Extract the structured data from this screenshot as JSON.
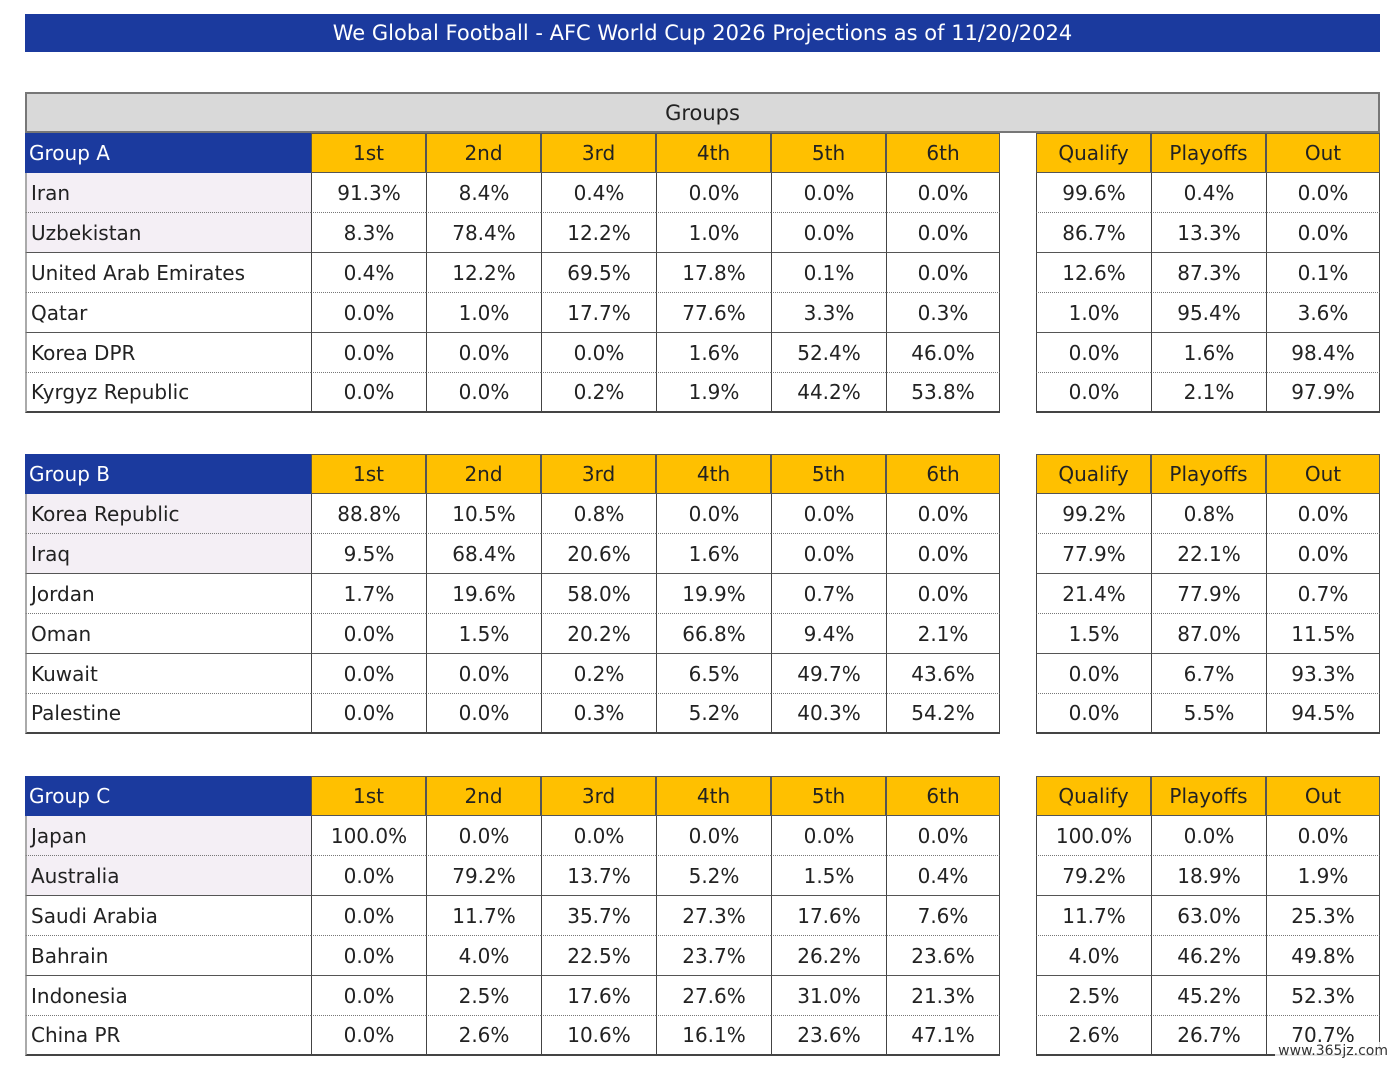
{
  "header": {
    "title": "We Global Football - AFC World Cup 2026 Projections as of 11/20/2024"
  },
  "groups_label": "Groups",
  "columns": [
    "1st",
    "2nd",
    "3rd",
    "4th",
    "5th",
    "6th"
  ],
  "outcome_columns": [
    "Qualify",
    "Playoffs",
    "Out"
  ],
  "groups": [
    {
      "name": "Group A",
      "rows": [
        {
          "team": "Iran",
          "positions": [
            "91.3%",
            "8.4%",
            "0.4%",
            "0.0%",
            "0.0%",
            "0.0%"
          ],
          "outcomes": [
            "99.6%",
            "0.4%",
            "0.0%"
          ]
        },
        {
          "team": "Uzbekistan",
          "positions": [
            "8.3%",
            "78.4%",
            "12.2%",
            "1.0%",
            "0.0%",
            "0.0%"
          ],
          "outcomes": [
            "86.7%",
            "13.3%",
            "0.0%"
          ]
        },
        {
          "team": "United Arab Emirates",
          "positions": [
            "0.4%",
            "12.2%",
            "69.5%",
            "17.8%",
            "0.1%",
            "0.0%"
          ],
          "outcomes": [
            "12.6%",
            "87.3%",
            "0.1%"
          ]
        },
        {
          "team": "Qatar",
          "positions": [
            "0.0%",
            "1.0%",
            "17.7%",
            "77.6%",
            "3.3%",
            "0.3%"
          ],
          "outcomes": [
            "1.0%",
            "95.4%",
            "3.6%"
          ]
        },
        {
          "team": "Korea DPR",
          "positions": [
            "0.0%",
            "0.0%",
            "0.0%",
            "1.6%",
            "52.4%",
            "46.0%"
          ],
          "outcomes": [
            "0.0%",
            "1.6%",
            "98.4%"
          ]
        },
        {
          "team": "Kyrgyz Republic",
          "positions": [
            "0.0%",
            "0.0%",
            "0.2%",
            "1.9%",
            "44.2%",
            "53.8%"
          ],
          "outcomes": [
            "0.0%",
            "2.1%",
            "97.9%"
          ]
        }
      ]
    },
    {
      "name": "Group B",
      "rows": [
        {
          "team": "Korea Republic",
          "positions": [
            "88.8%",
            "10.5%",
            "0.8%",
            "0.0%",
            "0.0%",
            "0.0%"
          ],
          "outcomes": [
            "99.2%",
            "0.8%",
            "0.0%"
          ]
        },
        {
          "team": "Iraq",
          "positions": [
            "9.5%",
            "68.4%",
            "20.6%",
            "1.6%",
            "0.0%",
            "0.0%"
          ],
          "outcomes": [
            "77.9%",
            "22.1%",
            "0.0%"
          ]
        },
        {
          "team": "Jordan",
          "positions": [
            "1.7%",
            "19.6%",
            "58.0%",
            "19.9%",
            "0.7%",
            "0.0%"
          ],
          "outcomes": [
            "21.4%",
            "77.9%",
            "0.7%"
          ]
        },
        {
          "team": "Oman",
          "positions": [
            "0.0%",
            "1.5%",
            "20.2%",
            "66.8%",
            "9.4%",
            "2.1%"
          ],
          "outcomes": [
            "1.5%",
            "87.0%",
            "11.5%"
          ]
        },
        {
          "team": "Kuwait",
          "positions": [
            "0.0%",
            "0.0%",
            "0.2%",
            "6.5%",
            "49.7%",
            "43.6%"
          ],
          "outcomes": [
            "0.0%",
            "6.7%",
            "93.3%"
          ]
        },
        {
          "team": "Palestine",
          "positions": [
            "0.0%",
            "0.0%",
            "0.3%",
            "5.2%",
            "40.3%",
            "54.2%"
          ],
          "outcomes": [
            "0.0%",
            "5.5%",
            "94.5%"
          ]
        }
      ]
    },
    {
      "name": "Group C",
      "rows": [
        {
          "team": "Japan",
          "positions": [
            "100.0%",
            "0.0%",
            "0.0%",
            "0.0%",
            "0.0%",
            "0.0%"
          ],
          "outcomes": [
            "100.0%",
            "0.0%",
            "0.0%"
          ]
        },
        {
          "team": "Australia",
          "positions": [
            "0.0%",
            "79.2%",
            "13.7%",
            "5.2%",
            "1.5%",
            "0.4%"
          ],
          "outcomes": [
            "79.2%",
            "18.9%",
            "1.9%"
          ]
        },
        {
          "team": "Saudi Arabia",
          "positions": [
            "0.0%",
            "11.7%",
            "35.7%",
            "27.3%",
            "17.6%",
            "7.6%"
          ],
          "outcomes": [
            "11.7%",
            "63.0%",
            "25.3%"
          ]
        },
        {
          "team": "Bahrain",
          "positions": [
            "0.0%",
            "4.0%",
            "22.5%",
            "23.7%",
            "26.2%",
            "23.6%"
          ],
          "outcomes": [
            "4.0%",
            "46.2%",
            "49.8%"
          ]
        },
        {
          "team": "Indonesia",
          "positions": [
            "0.0%",
            "2.5%",
            "17.6%",
            "27.6%",
            "31.0%",
            "21.3%"
          ],
          "outcomes": [
            "2.5%",
            "45.2%",
            "52.3%"
          ]
        },
        {
          "team": "China PR",
          "positions": [
            "0.0%",
            "2.6%",
            "10.6%",
            "16.1%",
            "23.6%",
            "47.1%"
          ],
          "outcomes": [
            "2.6%",
            "26.7%",
            "70.7%"
          ]
        }
      ]
    }
  ],
  "watermark": "www.365jz.com"
}
